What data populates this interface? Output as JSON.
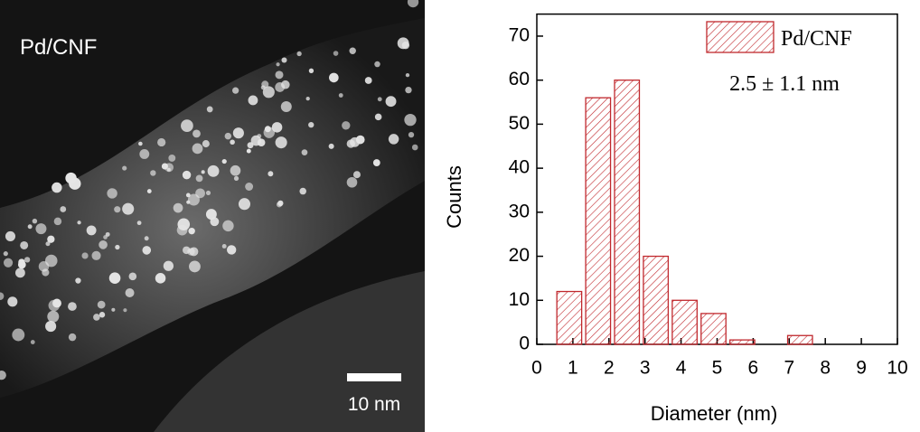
{
  "image": {
    "label": "Pd/CNF",
    "scale_bar": "10 nm"
  },
  "chart_data": {
    "type": "histogram",
    "xlabel": "Diameter (nm)",
    "ylabel": "Counts",
    "bins": [
      0.5,
      1.3,
      2.1,
      2.9,
      3.7,
      4.5,
      5.3,
      6.1,
      6.9,
      7.7
    ],
    "series": [
      {
        "name": "Pd/CNF",
        "color": "#c0282d",
        "values": [
          12,
          56,
          60,
          20,
          10,
          7,
          1,
          0,
          2
        ]
      }
    ],
    "annotation": "2.5 ± 1.1 nm",
    "xlim": [
      0,
      10
    ],
    "xticks": [
      0,
      1,
      2,
      3,
      4,
      5,
      6,
      7,
      8,
      9,
      10
    ],
    "ylim": [
      0,
      75
    ],
    "yticks": [
      0,
      10,
      20,
      30,
      40,
      50,
      60,
      70
    ],
    "legend": "upper right"
  }
}
